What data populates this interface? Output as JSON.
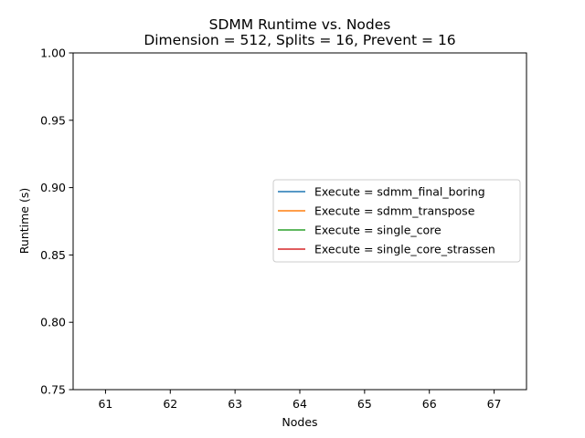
{
  "chart_data": {
    "type": "line",
    "title": "SDMM Runtime vs. Nodes",
    "subtitle": "Dimension = 512, Splits = 16, Prevent = 16",
    "xlabel": "Nodes",
    "ylabel": "Runtime (s)",
    "xlim": [
      60.5,
      67.5
    ],
    "ylim": [
      0.75,
      1.0
    ],
    "xticks": [
      61,
      62,
      63,
      64,
      65,
      66,
      67
    ],
    "yticks": [
      0.75,
      0.8,
      0.85,
      0.9,
      0.95,
      1.0
    ],
    "ytick_labels": [
      "0.75",
      "0.80",
      "0.85",
      "0.90",
      "0.95",
      "1.00"
    ],
    "grid": false,
    "legend_position": "center-right",
    "series": [
      {
        "name": "Execute = sdmm_final_boring",
        "color": "#1f77b4",
        "x": [],
        "y": []
      },
      {
        "name": "Execute = sdmm_transpose",
        "color": "#ff7f0e",
        "x": [],
        "y": []
      },
      {
        "name": "Execute = single_core",
        "color": "#2ca02c",
        "x": [],
        "y": []
      },
      {
        "name": "Execute = single_core_strassen",
        "color": "#d62728",
        "x": [],
        "y": []
      }
    ]
  }
}
